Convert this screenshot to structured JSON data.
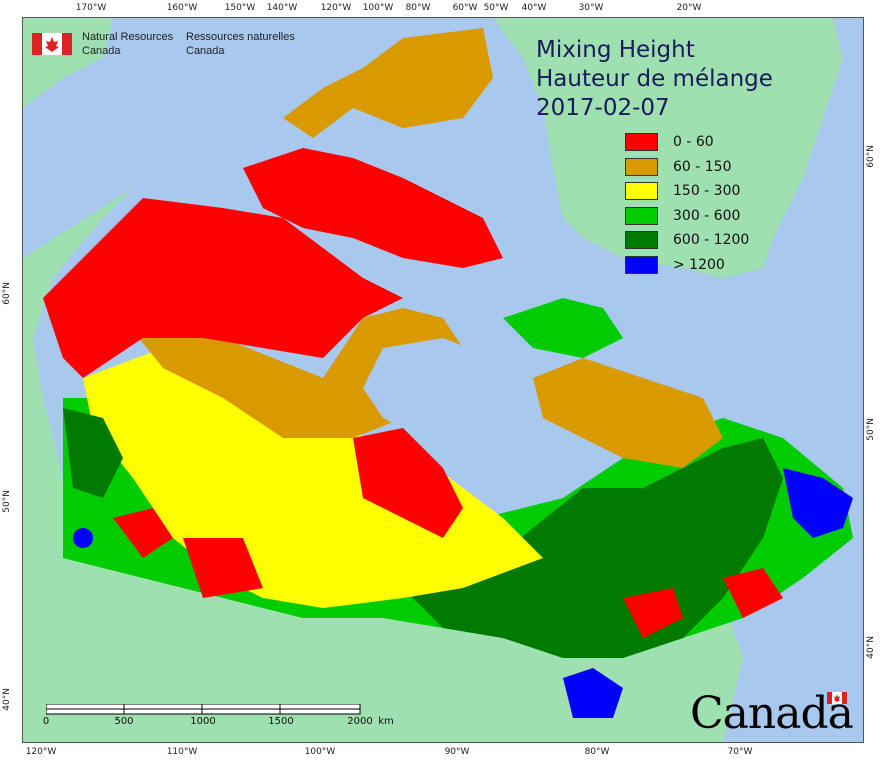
{
  "title": {
    "line1": "Mixing Height",
    "line2": "Hauteur de mélange",
    "date": "2017-02-07"
  },
  "org": {
    "english_line1": "Natural Resources",
    "english_line2": "Canada",
    "french_line1": "Ressources naturelles",
    "french_line2": "Canada"
  },
  "wordmark": "Canada",
  "legend": [
    {
      "label": "0 - 60",
      "color": "#ff0000"
    },
    {
      "label": "60 - 150",
      "color": "#d99a00"
    },
    {
      "label": "150 - 300",
      "color": "#ffff00"
    },
    {
      "label": "300 - 600",
      "color": "#00cc00"
    },
    {
      "label": "600 - 1200",
      "color": "#007a00"
    },
    {
      "label": "> 1200",
      "color": "#0000ff"
    }
  ],
  "top_ticks": [
    "170°W",
    "160°W",
    "150°W",
    "140°W",
    "120°W",
    "100°W",
    "80°W",
    "60°W",
    "50°W",
    "40°W",
    "30°W",
    "20°W"
  ],
  "bottom_ticks": [
    "120°W",
    "110°W",
    "100°W",
    "90°W",
    "80°W",
    "70°W"
  ],
  "left_ticks": [
    "60°N",
    "50°N",
    "40°N"
  ],
  "right_ticks": [
    "60°N",
    "50°N",
    "40°N"
  ],
  "scale": {
    "labels": [
      "0",
      "500",
      "1000",
      "1500",
      "2000"
    ],
    "unit": "km"
  },
  "colors": {
    "ocean": "#a8c8ee",
    "foreign_land": "#9fe0b0",
    "border": "#333333"
  }
}
